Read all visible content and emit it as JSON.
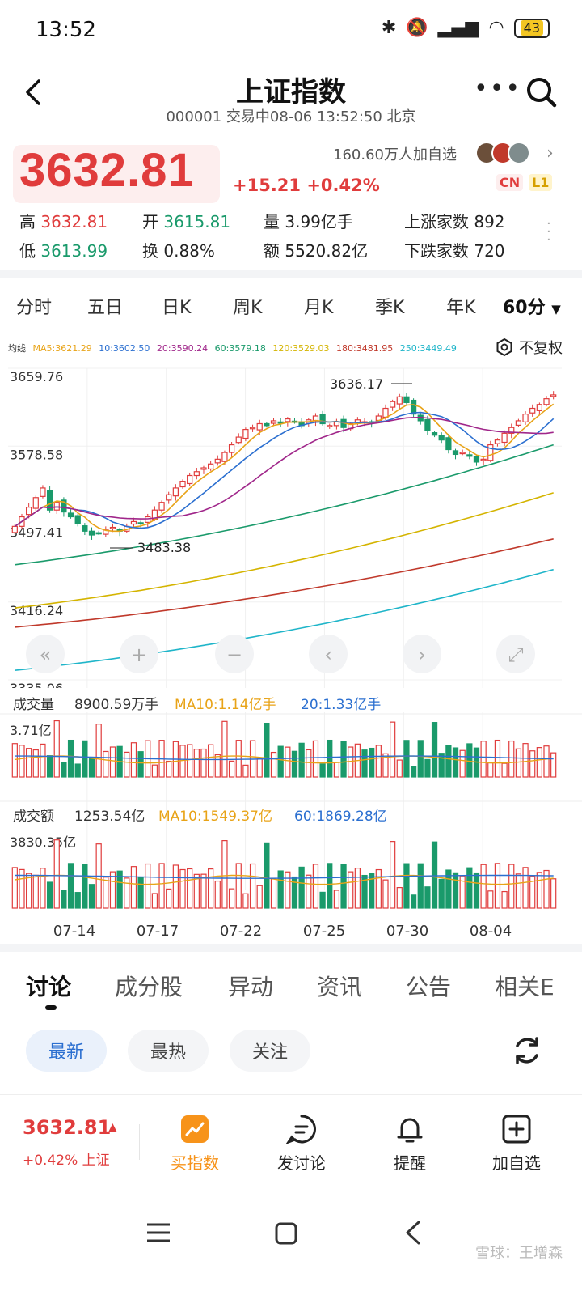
{
  "status_bar": {
    "time": "13:52",
    "battery": "43"
  },
  "header": {
    "title": "上证指数",
    "subtitle": "000001 交易中08-06 13:52:50 北京"
  },
  "quote": {
    "price": "3632.81",
    "change": "+15.21 +0.42%",
    "followers": "160.60万人加自选",
    "badge_cn": "CN",
    "badge_l1": "L1"
  },
  "stats": {
    "high_label": "高",
    "high_value": "3632.81",
    "open_label": "开",
    "open_value": "3615.81",
    "volume_label": "量",
    "volume_value": "3.99亿手",
    "up_label": "上涨家数",
    "up_value": "892",
    "low_label": "低",
    "low_value": "3613.99",
    "turnover_label": "换",
    "turnover_value": "0.88%",
    "amount_label": "额",
    "amount_value": "5520.82亿",
    "down_label": "下跌家数",
    "down_value": "720"
  },
  "period_tabs": [
    "分时",
    "五日",
    "日K",
    "周K",
    "月K",
    "季K",
    "年K",
    "60分"
  ],
  "kline": {
    "ma_title": "均线",
    "ma": [
      {
        "label": "MA5:3621.29",
        "color": "#e8a317"
      },
      {
        "label": "10:3602.50",
        "color": "#2b6fd0"
      },
      {
        "label": "20:3590.24",
        "color": "#a0268a"
      },
      {
        "label": "60:3579.18",
        "color": "#1a9a6b"
      },
      {
        "label": "120:3529.03",
        "color": "#d4b400"
      },
      {
        "label": "180:3481.95",
        "color": "#c0392b"
      },
      {
        "label": "250:3449.49",
        "color": "#1fb5c9"
      }
    ],
    "fuquan": "不复权",
    "y_labels": [
      "3659.76",
      "3578.58",
      "3497.41",
      "3416.24",
      "3335.06"
    ],
    "high_mark": "3636.17",
    "low_mark": "3483.38",
    "volume_title": "成交量",
    "volume_value": "8900.59万手",
    "volume_ma10": "MA10:1.14亿手",
    "volume_ma20": "20:1.33亿手",
    "volume_max": "3.71亿",
    "amount_title": "成交额",
    "amount_value": "1253.54亿",
    "amount_ma10": "MA10:1549.37亿",
    "amount_ma60": "60:1869.28亿",
    "amount_max": "3830.35亿",
    "dates": [
      "07-14",
      "07-17",
      "07-22",
      "07-25",
      "07-30",
      "08-04"
    ]
  },
  "chart_data": {
    "type": "candlestick",
    "period": "60分",
    "y_range": [
      3335.06,
      3659.76
    ],
    "y_ticks": [
      3659.76,
      3578.58,
      3497.41,
      3416.24,
      3335.06
    ],
    "x_ticks": [
      "07-14",
      "07-17",
      "07-22",
      "07-25",
      "07-30",
      "08-04"
    ],
    "annotations": [
      {
        "label": "3636.17",
        "value": 3636.17,
        "kind": "high"
      },
      {
        "label": "3483.38",
        "value": 3483.38,
        "kind": "low"
      }
    ],
    "closes": [
      3495,
      3505,
      3515,
      3525,
      3535,
      3512,
      3520,
      3510,
      3505,
      3498,
      3490,
      3486,
      3488,
      3492,
      3494,
      3490,
      3495,
      3500,
      3498,
      3505,
      3512,
      3520,
      3528,
      3535,
      3542,
      3548,
      3552,
      3556,
      3560,
      3565,
      3572,
      3580,
      3588,
      3596,
      3598,
      3602,
      3600,
      3605,
      3603,
      3607,
      3604,
      3600,
      3606,
      3610,
      3602,
      3600,
      3604,
      3598,
      3602,
      3606,
      3604,
      3603,
      3610,
      3618,
      3625,
      3630,
      3624,
      3612,
      3605,
      3595,
      3590,
      3585,
      3575,
      3570,
      3572,
      3568,
      3562,
      3565,
      3580,
      3585,
      3592,
      3598,
      3605,
      3612,
      3618,
      3622,
      3628,
      3632
    ],
    "ma_series": [
      {
        "name": "MA5",
        "value": 3621.29
      },
      {
        "name": "MA10",
        "value": 3602.5
      },
      {
        "name": "MA20",
        "value": 3590.24
      },
      {
        "name": "MA60",
        "value": 3579.18
      },
      {
        "name": "MA120",
        "value": 3529.03
      },
      {
        "name": "MA180",
        "value": 3481.95
      },
      {
        "name": "MA250",
        "value": 3449.49
      }
    ],
    "volume_max": 3.71,
    "amount_max": 3830.35
  },
  "section_tabs": [
    "讨论",
    "成分股",
    "异动",
    "资讯",
    "公告",
    "相关E"
  ],
  "filters": [
    "最新",
    "最热",
    "关注"
  ],
  "bottom_bar": {
    "price": "3632.81",
    "change": "+0.42% 上证",
    "buy": "买指数",
    "post": "发讨论",
    "alert": "提醒",
    "add": "加自选"
  },
  "watermark": "雪球：王增森",
  "colors": {
    "up": "#e03c3c",
    "down": "#1a9a6b",
    "accent": "#2b6fd0"
  }
}
